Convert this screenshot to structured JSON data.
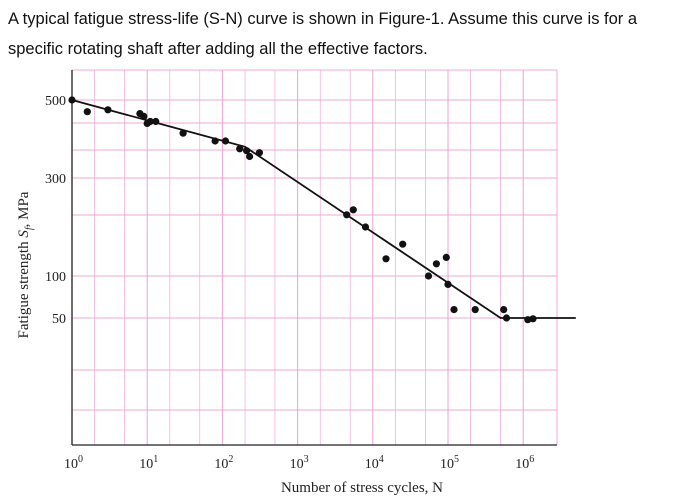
{
  "question": {
    "line1": "A typical fatigue stress-life (S-N) curve is shown in Figure-1. Assume this curve is for a",
    "line2": "specific rotating shaft after adding all the effective factors."
  },
  "chart_data": {
    "type": "scatter",
    "xscale": "log",
    "xlabel": "Number of stress cycles, N",
    "ylabel": "Fatigue strength S_f, MPa",
    "xticks": [
      {
        "value": 1,
        "label": "10",
        "exp": "0"
      },
      {
        "value": 10,
        "label": "10",
        "exp": "1"
      },
      {
        "value": 100,
        "label": "10",
        "exp": "2"
      },
      {
        "value": 1000,
        "label": "10",
        "exp": "3"
      },
      {
        "value": 10000,
        "label": "10",
        "exp": "4"
      },
      {
        "value": 100000,
        "label": "10",
        "exp": "5"
      },
      {
        "value": 1000000,
        "label": "10",
        "exp": "6"
      }
    ],
    "yticks": [
      500,
      300,
      100,
      50
    ],
    "grid": true,
    "curve": [
      [
        1,
        500
      ],
      [
        200,
        380
      ],
      [
        500000,
        50
      ],
      [
        5000000,
        50
      ]
    ],
    "points": [
      [
        1,
        500
      ],
      [
        1.6,
        470
      ],
      [
        3,
        475
      ],
      [
        8,
        465
      ],
      [
        9,
        458
      ],
      [
        10,
        440
      ],
      [
        11,
        445
      ],
      [
        13,
        445
      ],
      [
        30,
        415
      ],
      [
        80,
        395
      ],
      [
        110,
        395
      ],
      [
        170,
        375
      ],
      [
        210,
        370
      ],
      [
        230,
        355
      ],
      [
        310,
        365
      ],
      [
        4500,
        225
      ],
      [
        5500,
        235
      ],
      [
        8000,
        200
      ],
      [
        15000,
        135
      ],
      [
        25000,
        165
      ],
      [
        55000,
        100
      ],
      [
        70000,
        125
      ],
      [
        95000,
        138
      ],
      [
        100000,
        90
      ],
      [
        120000,
        60
      ],
      [
        230000,
        60
      ],
      [
        550000,
        60
      ],
      [
        600000,
        50
      ],
      [
        1150000,
        48
      ],
      [
        1350000,
        49
      ]
    ],
    "colors": {
      "grid": "#f0a8d4",
      "axis": "#222222",
      "curve": "#111111"
    }
  }
}
